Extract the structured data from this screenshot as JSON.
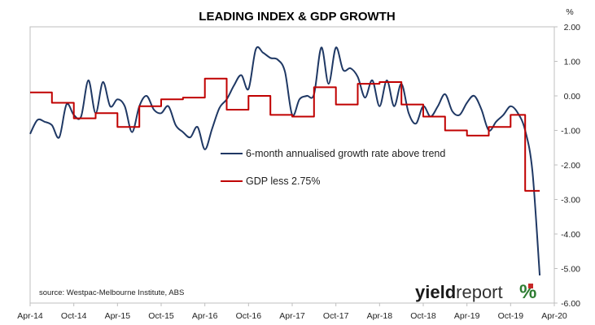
{
  "chart_data": {
    "type": "line",
    "title": "LEADING INDEX & GDP GROWTH",
    "y_unit": "%",
    "ylim": [
      -6.0,
      2.0
    ],
    "y_ticks": [
      "2.00",
      "1.00",
      "0.00",
      "-1.00",
      "-2.00",
      "-3.00",
      "-4.00",
      "-5.00",
      "-6.00"
    ],
    "x_start": "2014-04",
    "x_end": "2020-04",
    "x_ticks": [
      {
        "label": "Apr-14",
        "date": "2014-04"
      },
      {
        "label": "Oct-14",
        "date": "2014-10"
      },
      {
        "label": "Apr-15",
        "date": "2015-04"
      },
      {
        "label": "Oct-15",
        "date": "2015-10"
      },
      {
        "label": "Apr-16",
        "date": "2016-04"
      },
      {
        "label": "Oct-16",
        "date": "2016-10"
      },
      {
        "label": "Apr-17",
        "date": "2017-04"
      },
      {
        "label": "Oct-17",
        "date": "2017-10"
      },
      {
        "label": "Apr-18",
        "date": "2018-04"
      },
      {
        "label": "Oct-18",
        "date": "2018-10"
      },
      {
        "label": "Apr-19",
        "date": "2019-04"
      },
      {
        "label": "Oct-19",
        "date": "2019-10"
      },
      {
        "label": "Apr-20",
        "date": "2020-04"
      }
    ],
    "legend_position": "center",
    "grid": false,
    "series": [
      {
        "name": "6-month annualised growth rate above trend",
        "color": "#1f3864",
        "style": "smooth",
        "points": [
          [
            "2014-04",
            -1.1
          ],
          [
            "2014-05",
            -0.7
          ],
          [
            "2014-06",
            -0.75
          ],
          [
            "2014-07",
            -0.85
          ],
          [
            "2014-08",
            -1.2
          ],
          [
            "2014-09",
            -0.25
          ],
          [
            "2014-10",
            -0.55
          ],
          [
            "2014-11",
            -0.6
          ],
          [
            "2014-12",
            0.45
          ],
          [
            "2015-01",
            -0.5
          ],
          [
            "2015-02",
            0.4
          ],
          [
            "2015-03",
            -0.3
          ],
          [
            "2015-04",
            -0.1
          ],
          [
            "2015-05",
            -0.3
          ],
          [
            "2015-06",
            -1.05
          ],
          [
            "2015-07",
            -0.3
          ],
          [
            "2015-08",
            0.0
          ],
          [
            "2015-09",
            -0.4
          ],
          [
            "2015-10",
            -0.5
          ],
          [
            "2015-11",
            -0.3
          ],
          [
            "2015-12",
            -0.85
          ],
          [
            "2016-01",
            -1.05
          ],
          [
            "2016-02",
            -1.2
          ],
          [
            "2016-03",
            -0.9
          ],
          [
            "2016-04",
            -1.55
          ],
          [
            "2016-05",
            -0.95
          ],
          [
            "2016-06",
            -0.35
          ],
          [
            "2016-07",
            -0.1
          ],
          [
            "2016-08",
            0.3
          ],
          [
            "2016-09",
            0.6
          ],
          [
            "2016-10",
            0.2
          ],
          [
            "2016-11",
            1.35
          ],
          [
            "2016-12",
            1.25
          ],
          [
            "2017-01",
            1.1
          ],
          [
            "2017-02",
            1.05
          ],
          [
            "2017-03",
            0.7
          ],
          [
            "2017-04",
            -0.55
          ],
          [
            "2017-05",
            -0.1
          ],
          [
            "2017-06",
            0.0
          ],
          [
            "2017-07",
            0.05
          ],
          [
            "2017-08",
            1.4
          ],
          [
            "2017-09",
            0.35
          ],
          [
            "2017-10",
            1.4
          ],
          [
            "2017-11",
            0.75
          ],
          [
            "2017-12",
            0.8
          ],
          [
            "2018-01",
            0.55
          ],
          [
            "2018-02",
            -0.05
          ],
          [
            "2018-03",
            0.45
          ],
          [
            "2018-04",
            -0.3
          ],
          [
            "2018-05",
            0.45
          ],
          [
            "2018-06",
            -0.3
          ],
          [
            "2018-07",
            0.35
          ],
          [
            "2018-08",
            -0.5
          ],
          [
            "2018-09",
            -0.8
          ],
          [
            "2018-10",
            -0.3
          ],
          [
            "2018-11",
            -0.6
          ],
          [
            "2018-12",
            -0.3
          ],
          [
            "2019-01",
            0.05
          ],
          [
            "2019-02",
            -0.45
          ],
          [
            "2019-03",
            -0.55
          ],
          [
            "2019-04",
            -0.2
          ],
          [
            "2019-05",
            0.0
          ],
          [
            "2019-06",
            -0.4
          ],
          [
            "2019-07",
            -1.0
          ],
          [
            "2019-08",
            -0.75
          ],
          [
            "2019-09",
            -0.55
          ],
          [
            "2019-10",
            -0.3
          ],
          [
            "2019-11",
            -0.5
          ],
          [
            "2019-12",
            -1.0
          ],
          [
            "2020-01",
            -2.2
          ],
          [
            "2020-02",
            -5.2
          ]
        ]
      },
      {
        "name": "GDP less 2.75%",
        "color": "#c00000",
        "style": "step",
        "points": [
          [
            "2014-04",
            0.1
          ],
          [
            "2014-07",
            -0.2
          ],
          [
            "2014-10",
            -0.65
          ],
          [
            "2015-01",
            -0.5
          ],
          [
            "2015-04",
            -0.9
          ],
          [
            "2015-07",
            -0.3
          ],
          [
            "2015-10",
            -0.1
          ],
          [
            "2016-01",
            -0.05
          ],
          [
            "2016-04",
            0.5
          ],
          [
            "2016-07",
            -0.4
          ],
          [
            "2016-10",
            0.0
          ],
          [
            "2017-01",
            -0.55
          ],
          [
            "2017-04",
            -0.6
          ],
          [
            "2017-07",
            0.25
          ],
          [
            "2017-10",
            -0.25
          ],
          [
            "2018-01",
            0.35
          ],
          [
            "2018-04",
            0.4
          ],
          [
            "2018-07",
            -0.25
          ],
          [
            "2018-10",
            -0.6
          ],
          [
            "2019-01",
            -1.0
          ],
          [
            "2019-04",
            -1.15
          ],
          [
            "2019-07",
            -0.9
          ],
          [
            "2019-10",
            -0.55
          ],
          [
            "2019-12",
            -2.75
          ],
          [
            "2020-02",
            -2.75
          ]
        ]
      }
    ],
    "source": "source: Westpac-Melbourne Institute, ABS"
  },
  "logo": {
    "part1": "yield",
    "part2": "report",
    "part3": "%",
    "colors": [
      "#2e7d32",
      "#c62828"
    ]
  }
}
